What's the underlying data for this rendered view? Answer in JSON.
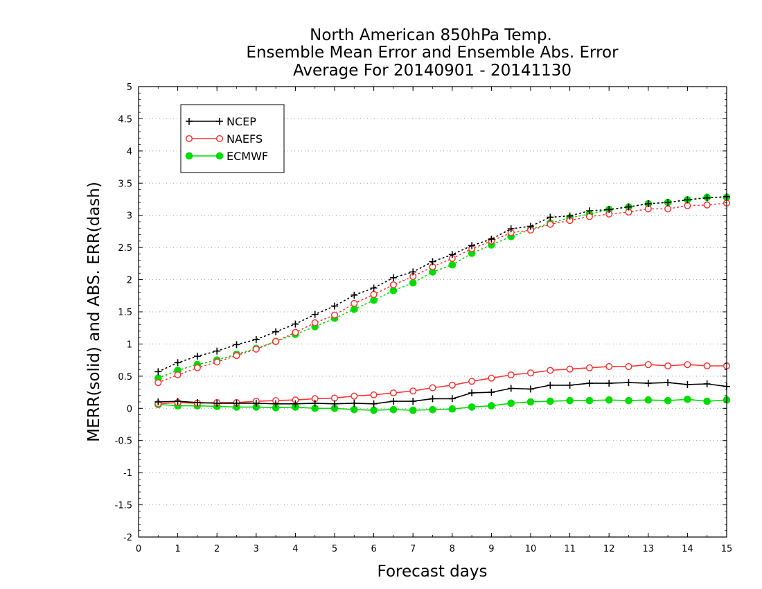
{
  "chart_data": {
    "type": "line",
    "title": [
      "North American 850hPa Temp.",
      "Ensemble Mean Error and Ensemble Abs. Error",
      "Average For 20140901 - 20141130"
    ],
    "xlabel": "Forecast days",
    "ylabel": "MERR(solid) and ABS. ERR(dash)",
    "xlim": [
      0,
      15
    ],
    "ylim": [
      -2,
      5
    ],
    "xticks": [
      "0",
      "1",
      "2",
      "3",
      "4",
      "5",
      "6",
      "7",
      "8",
      "9",
      "10",
      "11",
      "12",
      "13",
      "14",
      "15"
    ],
    "yticks": [
      "-2",
      "-1.5",
      "-1",
      "-0.5",
      "0",
      "0.5",
      "1",
      "1.5",
      "2",
      "2.5",
      "3",
      "3.5",
      "4",
      "4.5",
      "5"
    ],
    "grid": true,
    "legend_position": "top-left",
    "x": [
      0.5,
      1,
      1.5,
      2,
      2.5,
      3,
      3.5,
      4,
      4.5,
      5,
      5.5,
      6,
      6.5,
      7,
      7.5,
      8,
      8.5,
      9,
      9.5,
      10,
      10.5,
      11,
      11.5,
      12,
      12.5,
      13,
      13.5,
      14,
      14.5,
      15
    ],
    "series": [
      {
        "name": "NCEP",
        "color": "#000000",
        "marker": "plus",
        "merr": [
          0.1,
          0.11,
          0.09,
          0.08,
          0.08,
          0.08,
          0.07,
          0.07,
          0.08,
          0.07,
          0.08,
          0.07,
          0.11,
          0.11,
          0.15,
          0.15,
          0.24,
          0.25,
          0.31,
          0.3,
          0.36,
          0.36,
          0.39,
          0.39,
          0.4,
          0.39,
          0.4,
          0.37,
          0.38,
          0.34
        ],
        "abserr": [
          0.57,
          0.71,
          0.81,
          0.89,
          0.99,
          1.07,
          1.19,
          1.31,
          1.46,
          1.59,
          1.76,
          1.87,
          2.03,
          2.12,
          2.28,
          2.39,
          2.53,
          2.63,
          2.79,
          2.83,
          2.97,
          2.99,
          3.07,
          3.09,
          3.13,
          3.18,
          3.2,
          3.24,
          3.27,
          3.29
        ]
      },
      {
        "name": "NAEFS",
        "color": "#ff3333",
        "marker": "open-circle",
        "merr": [
          0.07,
          0.09,
          0.08,
          0.09,
          0.09,
          0.11,
          0.12,
          0.13,
          0.15,
          0.16,
          0.19,
          0.21,
          0.24,
          0.27,
          0.32,
          0.36,
          0.42,
          0.47,
          0.52,
          0.55,
          0.59,
          0.61,
          0.63,
          0.65,
          0.65,
          0.68,
          0.66,
          0.68,
          0.66,
          0.66
        ],
        "abserr": [
          0.4,
          0.52,
          0.63,
          0.72,
          0.82,
          0.92,
          1.04,
          1.18,
          1.33,
          1.45,
          1.63,
          1.77,
          1.92,
          2.05,
          2.2,
          2.33,
          2.48,
          2.6,
          2.73,
          2.77,
          2.86,
          2.92,
          2.98,
          3.02,
          3.05,
          3.1,
          3.1,
          3.15,
          3.16,
          3.19
        ]
      },
      {
        "name": "ECMWF",
        "color": "#00dd00",
        "marker": "filled-circle",
        "merr": [
          0.06,
          0.04,
          0.04,
          0.03,
          0.02,
          0.02,
          0.01,
          0.02,
          0.0,
          0.0,
          -0.02,
          -0.03,
          -0.02,
          -0.03,
          -0.02,
          -0.01,
          0.02,
          0.04,
          0.08,
          0.1,
          0.11,
          0.12,
          0.12,
          0.13,
          0.12,
          0.13,
          0.12,
          0.14,
          0.11,
          0.13
        ],
        "abserr": [
          0.47,
          0.59,
          0.68,
          0.75,
          0.84,
          0.93,
          1.04,
          1.15,
          1.27,
          1.4,
          1.54,
          1.68,
          1.83,
          1.95,
          2.12,
          2.23,
          2.41,
          2.54,
          2.67,
          2.78,
          2.88,
          2.96,
          3.02,
          3.09,
          3.13,
          3.18,
          3.2,
          3.24,
          3.28,
          3.28
        ]
      }
    ]
  }
}
